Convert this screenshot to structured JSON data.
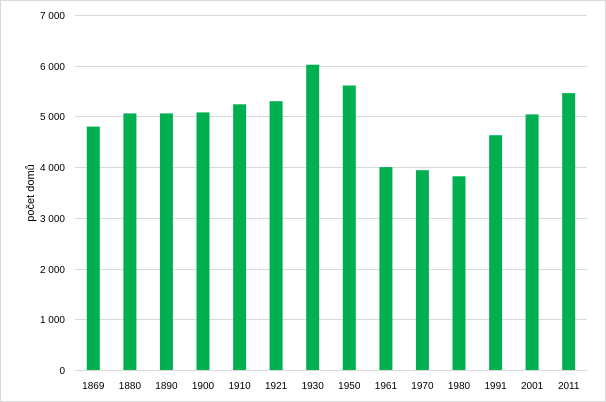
{
  "chart_data": {
    "type": "bar",
    "ylabel": "počet domů",
    "xlabel": "",
    "categories": [
      "1869",
      "1880",
      "1890",
      "1900",
      "1910",
      "1921",
      "1930",
      "1950",
      "1961",
      "1970",
      "1980",
      "1991",
      "2001",
      "2011"
    ],
    "series": [
      {
        "values": [
          4800,
          5060,
          5060,
          5080,
          5240,
          5300,
          6020,
          5610,
          4000,
          3940,
          3820,
          4630,
          5040,
          5460
        ],
        "color": "#00b050"
      }
    ],
    "ylim": [
      0,
      7000
    ],
    "yticks": [
      0,
      1000,
      2000,
      3000,
      4000,
      5000,
      6000,
      7000
    ],
    "ytick_labels": [
      "0",
      "1 000",
      "2 000",
      "3 000",
      "4 000",
      "5 000",
      "6 000",
      "7 000"
    ],
    "grid": true,
    "legend": "none"
  }
}
